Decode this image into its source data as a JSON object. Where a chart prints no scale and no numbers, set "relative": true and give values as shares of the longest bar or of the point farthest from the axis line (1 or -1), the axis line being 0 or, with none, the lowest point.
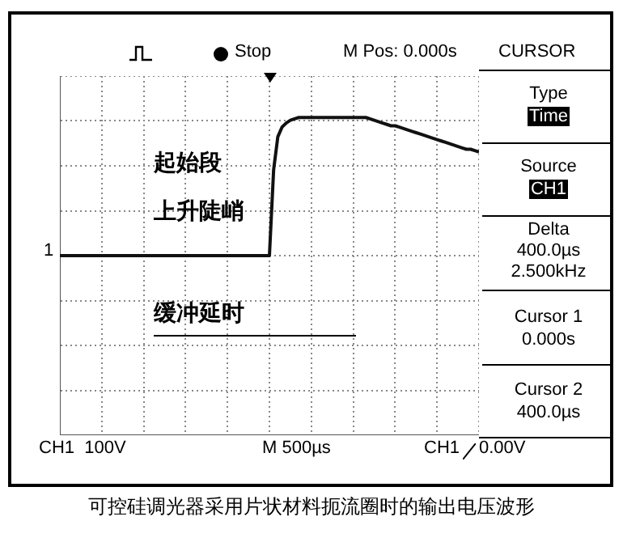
{
  "chart_data": {
    "type": "line",
    "relative": true,
    "categories": [
      null,
      null,
      null,
      null,
      null,
      null,
      null,
      null,
      null,
      null,
      null,
      null,
      null,
      null,
      null,
      null,
      null,
      null,
      null,
      null,
      null,
      null,
      null,
      null,
      null,
      null,
      null,
      null,
      null,
      null,
      null,
      null,
      null,
      null,
      null,
      null,
      null,
      null,
      null,
      null,
      null,
      null,
      null,
      null,
      null,
      null,
      null,
      null,
      null,
      null,
      null,
      null,
      null,
      null,
      null,
      null,
      null,
      null,
      null,
      null,
      null,
      null,
      null,
      null,
      null,
      null,
      null,
      null,
      null,
      null,
      null,
      null,
      null,
      null,
      null,
      null,
      null,
      null,
      null,
      null,
      null,
      null,
      null,
      null,
      null,
      null,
      null,
      null,
      null,
      null,
      null,
      null,
      null,
      null,
      null,
      null,
      null,
      null,
      null,
      null,
      null
    ],
    "series": [
      {
        "color": "#111111",
        "values": [
          0,
          0,
          0,
          0,
          0,
          0,
          0,
          0,
          0,
          0,
          0,
          0,
          0,
          0,
          0,
          0,
          0,
          0,
          0,
          0,
          0,
          0,
          0,
          0,
          0,
          0,
          0,
          0,
          0,
          0,
          0,
          0,
          0,
          0,
          0,
          0,
          0,
          0,
          0,
          0,
          0,
          0,
          0,
          0,
          0,
          0,
          0,
          0,
          0,
          0,
          0,
          0.62,
          0.86,
          0.93,
          0.96,
          0.98,
          0.99,
          1,
          1,
          1,
          1,
          1,
          1,
          1,
          1,
          1,
          1,
          1,
          1,
          1,
          1,
          1,
          1,
          1,
          0.99,
          0.98,
          0.97,
          0.96,
          0.95,
          0.94,
          0.94,
          0.93,
          0.92,
          0.91,
          0.9,
          0.89,
          0.88,
          0.87,
          0.86,
          0.85,
          0.84,
          0.83,
          0.82,
          0.81,
          0.8,
          0.79,
          0.78,
          0.77,
          0.77,
          0.76,
          0.75
        ]
      }
    ],
    "tick_labels": false,
    "grid": true,
    "legend": false,
    "marker": "none",
    "line_style": "solid",
    "annotations": [
      "Stop",
      "M Pos: 0.000s",
      "CURSOR",
      "Type",
      "Time",
      "Source",
      "CH1",
      "Delta",
      "400.0µs",
      "2.500kHz",
      "Cursor 1",
      "0.000s",
      "Cursor 2",
      "400.0µs",
      "CH1  100V",
      "M 500µs",
      "CH1",
      "0.00V",
      "1",
      "起始段",
      "上升陡峭",
      "缓冲延时",
      "可控硅调光器采用片状材料扼流圈时的输出电压波形"
    ]
  }
}
